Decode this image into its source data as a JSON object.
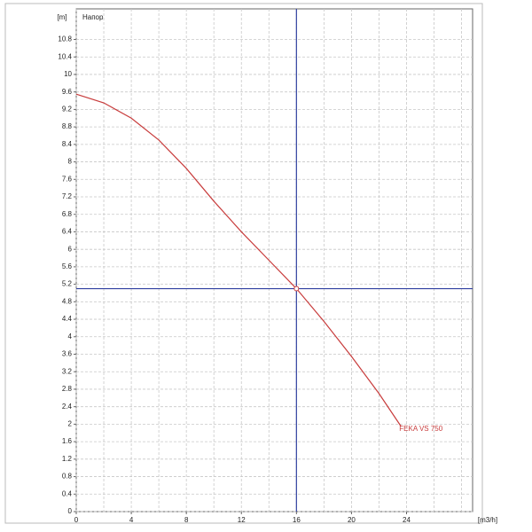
{
  "chart_data": {
    "type": "line",
    "title": "Напор",
    "y_label": "[m]",
    "x_label": "[m3/h]",
    "x": [
      0,
      2,
      4,
      6,
      8,
      10,
      12,
      14,
      16,
      18,
      20,
      22,
      23.6
    ],
    "series": [
      {
        "name": "FEKA VS 750",
        "color": "#c83c3c",
        "values": [
          9.55,
          9.35,
          9.0,
          8.5,
          7.85,
          7.1,
          6.4,
          5.75,
          5.1,
          4.35,
          3.55,
          2.7,
          1.95
        ]
      }
    ],
    "operating_point": {
      "x": 16,
      "y": 5.1,
      "color": "#3040a0"
    },
    "xlim": [
      0,
      28.8
    ],
    "ylim": [
      0,
      11.5
    ],
    "xticks": [
      0,
      4,
      8,
      12,
      16,
      20,
      24
    ],
    "x_minor_ticks": [
      2,
      6,
      10,
      14,
      18,
      22,
      26,
      28
    ],
    "yticks": [
      0,
      0.4,
      0.8,
      1.2,
      1.6,
      2,
      2.4,
      2.8,
      3.2,
      3.6,
      4,
      4.4,
      4.8,
      5.2,
      5.6,
      6,
      6.4,
      6.8,
      7.2,
      7.6,
      8,
      8.4,
      8.8,
      9.2,
      9.6,
      10,
      10.4,
      10.8
    ],
    "grid": true
  }
}
